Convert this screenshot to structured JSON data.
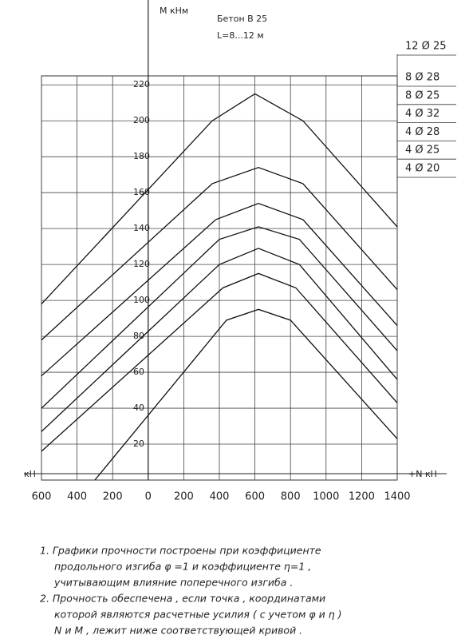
{
  "chart_data": {
    "type": "line",
    "y_label": "М кНм",
    "subtitle": "Бетон В 25",
    "subtitle2": "L=8...12 м",
    "x_label_left": "кН",
    "x_label": "+N кН",
    "xlim": [
      -600,
      1400
    ],
    "ylim": [
      0,
      225
    ],
    "xticks": [
      {
        "value": -600,
        "label": "600"
      },
      {
        "value": -400,
        "label": "400"
      },
      {
        "value": -200,
        "label": "200"
      },
      0,
      200,
      400,
      600,
      800,
      1000,
      1200,
      1400
    ],
    "yticks": [
      20,
      40,
      60,
      80,
      100,
      120,
      140,
      160,
      180,
      200,
      220
    ],
    "grid": true,
    "series": [
      {
        "name": "12 Ø 25",
        "color": "#111",
        "x": [
          -600,
          360,
          600,
          870,
          1400
        ],
        "values": [
          98,
          200,
          215,
          200,
          141
        ]
      },
      {
        "name": "8 Ø 28",
        "color": "#111",
        "x": [
          -600,
          360,
          620,
          870,
          1400
        ],
        "values": [
          78,
          165,
          174,
          165,
          106
        ]
      },
      {
        "name": "8 Ø 25",
        "color": "#111",
        "x": [
          -600,
          380,
          620,
          870,
          1400
        ],
        "values": [
          58,
          145,
          154,
          145,
          86
        ]
      },
      {
        "name": "4 Ø 32",
        "color": "#111",
        "x": [
          -600,
          400,
          620,
          850,
          1400
        ],
        "values": [
          40,
          134,
          141,
          134,
          72
        ]
      },
      {
        "name": "4 Ø 28",
        "color": "#111",
        "x": [
          -600,
          400,
          620,
          850,
          1400
        ],
        "values": [
          27,
          120,
          129,
          120,
          56
        ]
      },
      {
        "name": "4 Ø 25",
        "color": "#111",
        "x": [
          -600,
          420,
          620,
          830,
          1400
        ],
        "values": [
          16,
          107,
          115,
          107,
          43
        ]
      },
      {
        "name": "4 Ø 20",
        "color": "#111",
        "x": [
          -300,
          440,
          620,
          800,
          1400
        ],
        "values": [
          0,
          89,
          95,
          89,
          23
        ]
      }
    ],
    "notes": [
      "1. Графики прочности построены при коэффициенте",
      "продольного изгиба φ =1 и коэффициенте η=1 ,",
      "учитывающим влияние поперечного изгиба .",
      "2. Прочность обеспечена , если точка , координатами",
      "которой являются расчетные усилия ( с учетом φ и η )",
      "N и M , лежит ниже соответствующей кривой ."
    ]
  }
}
